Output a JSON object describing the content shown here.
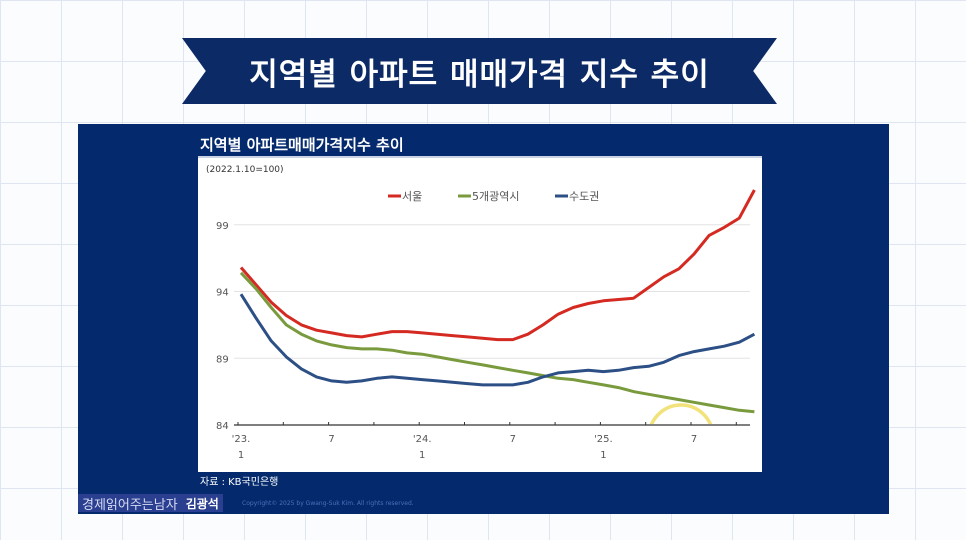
{
  "banner": {
    "title": "지역별 아파트 매매가격 지수 추이"
  },
  "panel": {
    "source": "자료 : KB국민은행",
    "brand": "경제읽어주는남자",
    "author": "김광석",
    "copyright": "Copyright© 2025 by Gwang-Suk Kim. All rights reserved."
  },
  "chart_data": {
    "type": "line",
    "title": "지역별 아파트매매가격지수 추이",
    "subtitle": "(2022.1.10=100)",
    "ylim": [
      84,
      102
    ],
    "yticks": [
      99,
      94,
      89,
      84
    ],
    "xticks": [
      {
        "m": 0,
        "l1": "'23.",
        "l2": "1"
      },
      {
        "m": 6,
        "l1": "7",
        "l2": ""
      },
      {
        "m": 12,
        "l1": "'24.",
        "l2": "1"
      },
      {
        "m": 18,
        "l1": "7",
        "l2": ""
      },
      {
        "m": 24,
        "l1": "'25.",
        "l2": "1"
      },
      {
        "m": 30,
        "l1": "7",
        "l2": ""
      }
    ],
    "x": [
      "2023-01",
      "2023-02",
      "2023-03",
      "2023-04",
      "2023-05",
      "2023-06",
      "2023-07",
      "2023-08",
      "2023-09",
      "2023-10",
      "2023-11",
      "2023-12",
      "2024-01",
      "2024-02",
      "2024-03",
      "2024-04",
      "2024-05",
      "2024-06",
      "2024-07",
      "2024-08",
      "2024-09",
      "2024-10",
      "2024-11",
      "2024-12",
      "2025-01",
      "2025-02",
      "2025-03",
      "2025-04",
      "2025-05",
      "2025-06",
      "2025-07",
      "2025-08",
      "2025-09",
      "2025-10",
      "2025-11"
    ],
    "legend_position": "top-center",
    "grid": "horizontal",
    "series": [
      {
        "name": "서울",
        "color": "#d42a22",
        "values": [
          95.8,
          94.5,
          93.2,
          92.2,
          91.5,
          91.1,
          90.9,
          90.7,
          90.6,
          90.8,
          91.0,
          91.0,
          90.9,
          90.8,
          90.7,
          90.6,
          90.5,
          90.4,
          90.4,
          90.8,
          91.5,
          92.3,
          92.8,
          93.1,
          93.3,
          93.4,
          93.5,
          94.3,
          95.1,
          95.7,
          96.8,
          98.2,
          98.8,
          99.5,
          101.6
        ]
      },
      {
        "name": "5개광역시",
        "color": "#7a9a3e",
        "values": [
          95.4,
          94.2,
          92.8,
          91.5,
          90.8,
          90.3,
          90.0,
          89.8,
          89.7,
          89.7,
          89.6,
          89.4,
          89.3,
          89.1,
          88.9,
          88.7,
          88.5,
          88.3,
          88.1,
          87.9,
          87.7,
          87.5,
          87.4,
          87.2,
          87.0,
          86.8,
          86.5,
          86.3,
          86.1,
          85.9,
          85.7,
          85.5,
          85.3,
          85.1,
          85.0
        ]
      },
      {
        "name": "수도권",
        "color": "#2c4f86",
        "values": [
          93.8,
          92.0,
          90.3,
          89.1,
          88.2,
          87.6,
          87.3,
          87.2,
          87.3,
          87.5,
          87.6,
          87.5,
          87.4,
          87.3,
          87.2,
          87.1,
          87.0,
          87.0,
          87.0,
          87.2,
          87.6,
          87.9,
          88.0,
          88.1,
          88.0,
          88.1,
          88.3,
          88.4,
          88.7,
          89.2,
          89.5,
          89.7,
          89.9,
          90.2,
          90.8
        ]
      }
    ],
    "annotation": {
      "shape": "circle",
      "color": "#f2e27a"
    }
  }
}
